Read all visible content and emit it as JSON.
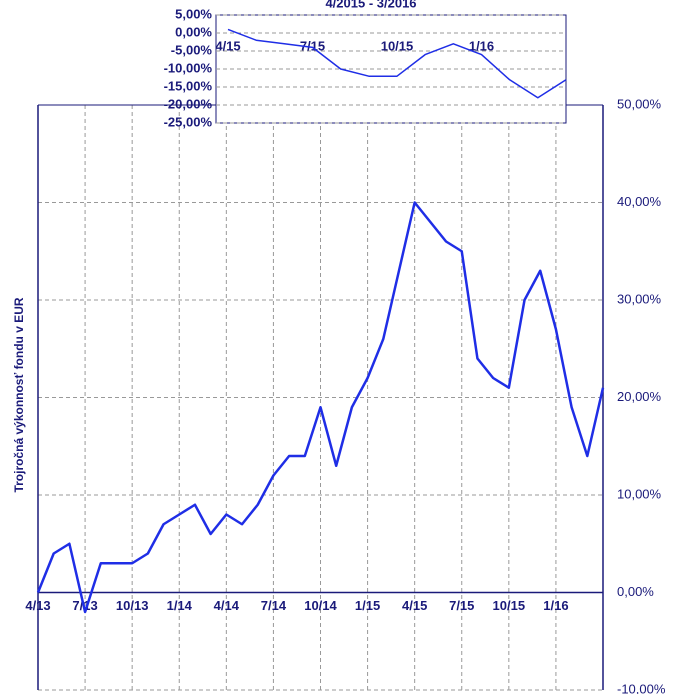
{
  "chart_data": [
    {
      "type": "line",
      "y_label": "Trojročná výkonnosť fondu v EUR",
      "x": [
        "4/13",
        "5/13",
        "6/13",
        "7/13",
        "8/13",
        "9/13",
        "10/13",
        "11/13",
        "12/13",
        "1/14",
        "2/14",
        "3/14",
        "4/14",
        "5/14",
        "6/14",
        "7/14",
        "8/14",
        "9/14",
        "10/14",
        "11/14",
        "12/14",
        "1/15",
        "2/15",
        "3/15",
        "4/15",
        "5/15",
        "6/15",
        "7/15",
        "8/15",
        "9/15",
        "10/15",
        "11/15",
        "12/15",
        "1/16",
        "2/16",
        "3/16",
        "4/16"
      ],
      "xticks": [
        "4/13",
        "7/13",
        "10/13",
        "1/14",
        "4/14",
        "7/14",
        "10/14",
        "1/15",
        "4/15",
        "7/15",
        "10/15",
        "1/16"
      ],
      "series": [
        {
          "color": "#1f2ee6",
          "values": [
            0,
            4,
            5,
            -2,
            3,
            3,
            3,
            4,
            7,
            8,
            9,
            6,
            8,
            7,
            9,
            12,
            14,
            14,
            19,
            13,
            19,
            22,
            26,
            33,
            40,
            38,
            36,
            35,
            24,
            22,
            21,
            30,
            33,
            27,
            19,
            14,
            21
          ]
        }
      ],
      "ylim": [
        -10,
        50
      ],
      "yticks": [
        {
          "value": -10,
          "label": "-10,00%"
        },
        {
          "value": 0,
          "label": "0,00%"
        },
        {
          "value": 10,
          "label": "10,00%"
        },
        {
          "value": 20,
          "label": "20,00%"
        },
        {
          "value": 30,
          "label": "30,00%"
        },
        {
          "value": 40,
          "label": "40,00%"
        },
        {
          "value": 50,
          "label": "50,00%"
        }
      ],
      "grid": true
    },
    {
      "type": "line",
      "title": "4/2015 - 3/2016",
      "x": [
        "4/15",
        "5/15",
        "6/15",
        "7/15",
        "8/15",
        "9/15",
        "10/15",
        "11/15",
        "12/15",
        "1/16",
        "2/16",
        "3/16",
        "4/16"
      ],
      "xticks": [
        "4/15",
        "7/15",
        "10/15",
        "1/16"
      ],
      "series": [
        {
          "color": "#1f2ee6",
          "values": [
            1,
            -2,
            -3,
            -4,
            -10,
            -12,
            -12,
            -6,
            -3,
            -6,
            -13,
            -18,
            -13
          ]
        }
      ],
      "ylim": [
        -25,
        5
      ],
      "yticks": [
        {
          "value": -25,
          "label": "-25,00%"
        },
        {
          "value": -20,
          "label": "-20,00%"
        },
        {
          "value": -15,
          "label": "-15,00%"
        },
        {
          "value": -10,
          "label": "-10,00%"
        },
        {
          "value": -5,
          "label": "-5,00%"
        },
        {
          "value": 0,
          "label": "0,00%"
        },
        {
          "value": 5,
          "label": "5,00%"
        }
      ],
      "grid": true
    }
  ]
}
